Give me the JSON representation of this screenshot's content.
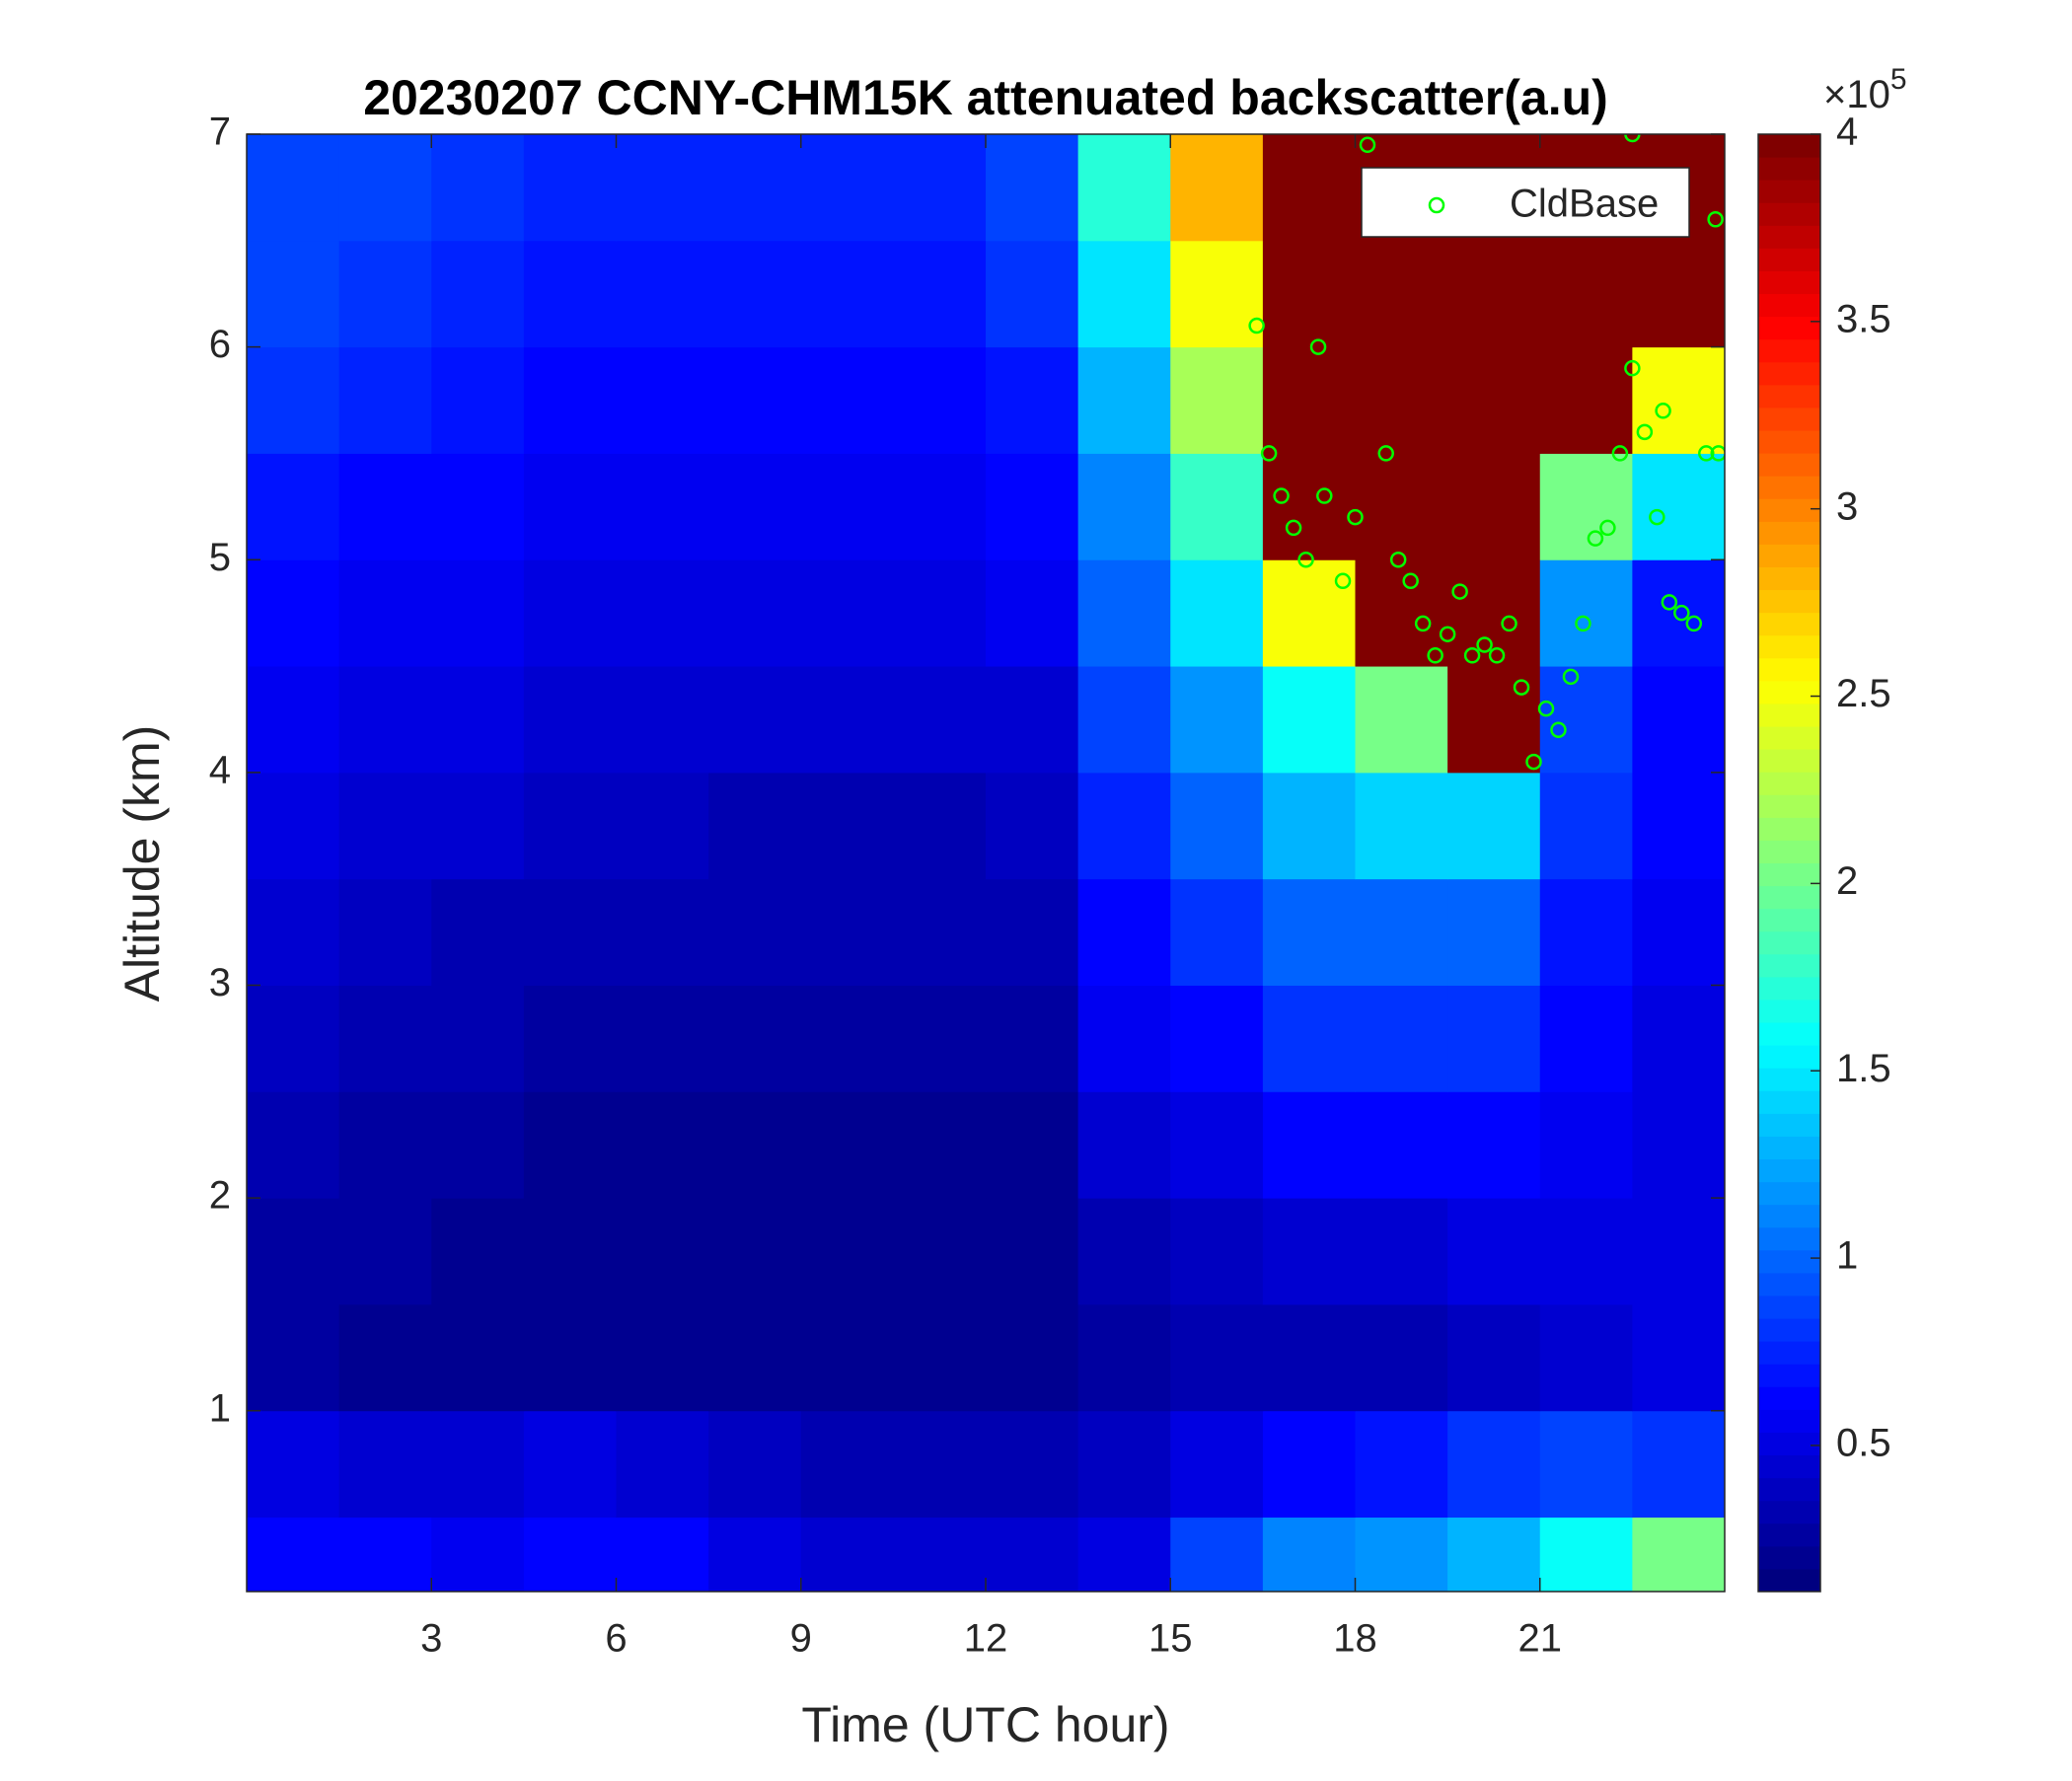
{
  "chart_data": {
    "type": "heatmap",
    "title": "20230207 CCNY-CHM15K attenuated backscatter(a.u)",
    "x_label": "Time (UTC hour)",
    "y_label": "Altitude (km)",
    "xlim": [
      0,
      24
    ],
    "xticks": [
      3,
      6,
      9,
      12,
      15,
      18,
      21
    ],
    "ylim": [
      0.15,
      7
    ],
    "yticks": [
      1,
      2,
      3,
      4,
      5,
      6,
      7
    ],
    "colormap": "jet",
    "clim": [
      0.11,
      4
    ],
    "colorbar_ticks": [
      0.5,
      1,
      1.5,
      2,
      2.5,
      3,
      3.5,
      4
    ],
    "colorbar_multiplier_base": "×10",
    "colorbar_multiplier_exponent": "5",
    "x": [
      0.75,
      2.25,
      3.75,
      5.25,
      6.75,
      8.25,
      9.75,
      11.25,
      12.75,
      14.25,
      15.75,
      17.25,
      18.75,
      20.25,
      21.75,
      23.25
    ],
    "y": [
      0.25,
      0.75,
      1.25,
      1.75,
      2.25,
      2.75,
      3.25,
      3.75,
      4.25,
      4.75,
      5.25,
      5.75,
      6.25,
      6.75
    ],
    "z": [
      [
        0.6,
        0.6,
        0.55,
        0.6,
        0.6,
        0.5,
        0.45,
        0.45,
        0.45,
        0.5,
        0.9,
        1.1,
        1.2,
        1.3,
        1.6,
        2.0
      ],
      [
        0.5,
        0.45,
        0.45,
        0.5,
        0.45,
        0.4,
        0.35,
        0.35,
        0.35,
        0.4,
        0.5,
        0.6,
        0.7,
        0.8,
        0.9,
        0.8
      ],
      [
        0.25,
        0.22,
        0.2,
        0.2,
        0.2,
        0.2,
        0.18,
        0.18,
        0.18,
        0.25,
        0.3,
        0.35,
        0.35,
        0.4,
        0.45,
        0.5
      ],
      [
        0.28,
        0.25,
        0.22,
        0.2,
        0.2,
        0.2,
        0.2,
        0.2,
        0.2,
        0.35,
        0.4,
        0.45,
        0.45,
        0.5,
        0.5,
        0.5
      ],
      [
        0.32,
        0.28,
        0.25,
        0.23,
        0.22,
        0.22,
        0.22,
        0.22,
        0.22,
        0.45,
        0.5,
        0.6,
        0.6,
        0.6,
        0.55,
        0.5
      ],
      [
        0.36,
        0.32,
        0.3,
        0.27,
        0.25,
        0.25,
        0.25,
        0.25,
        0.26,
        0.55,
        0.65,
        0.8,
        0.8,
        0.8,
        0.6,
        0.5
      ],
      [
        0.42,
        0.38,
        0.35,
        0.32,
        0.3,
        0.3,
        0.3,
        0.3,
        0.3,
        0.65,
        0.8,
        1.0,
        1.0,
        1.0,
        0.7,
        0.55
      ],
      [
        0.48,
        0.45,
        0.42,
        0.4,
        0.36,
        0.35,
        0.35,
        0.35,
        0.36,
        0.75,
        1.0,
        1.3,
        1.4,
        1.4,
        0.8,
        0.6
      ],
      [
        0.55,
        0.52,
        0.5,
        0.46,
        0.42,
        0.42,
        0.42,
        0.42,
        0.45,
        0.85,
        1.2,
        1.6,
        2.0,
        4.0,
        0.9,
        0.65
      ],
      [
        0.62,
        0.58,
        0.55,
        0.52,
        0.5,
        0.5,
        0.5,
        0.5,
        0.55,
        1.0,
        1.5,
        2.5,
        4.0,
        4.0,
        1.2,
        0.7
      ],
      [
        0.7,
        0.65,
        0.62,
        0.58,
        0.55,
        0.55,
        0.55,
        0.55,
        0.62,
        1.1,
        1.8,
        4.0,
        4.0,
        4.0,
        2.0,
        1.5
      ],
      [
        0.78,
        0.72,
        0.68,
        0.64,
        0.62,
        0.62,
        0.62,
        0.62,
        0.7,
        1.3,
        2.2,
        4.0,
        4.0,
        4.0,
        4.0,
        2.5
      ],
      [
        0.85,
        0.8,
        0.75,
        0.7,
        0.68,
        0.68,
        0.68,
        0.68,
        0.8,
        1.5,
        2.5,
        4.0,
        4.0,
        4.0,
        4.0,
        4.0
      ],
      [
        0.9,
        0.85,
        0.8,
        0.76,
        0.72,
        0.72,
        0.72,
        0.75,
        0.9,
        1.7,
        2.8,
        4.0,
        4.0,
        4.0,
        4.0,
        4.0
      ]
    ],
    "series": [
      {
        "name": "CldBase",
        "color": "#00ff00",
        "marker": "circle",
        "x": [
          16.4,
          16.6,
          16.8,
          17.0,
          17.2,
          17.4,
          17.5,
          17.8,
          18.0,
          18.2,
          18.5,
          18.7,
          18.9,
          19.1,
          19.3,
          19.5,
          19.7,
          19.9,
          20.1,
          20.3,
          20.5,
          20.7,
          20.9,
          21.1,
          21.3,
          21.5,
          21.7,
          21.9,
          22.1,
          22.3,
          22.5,
          22.5,
          22.7,
          22.9,
          23.0,
          23.1,
          23.3,
          23.5,
          23.7,
          23.85,
          23.9
        ],
        "values": [
          6.1,
          5.5,
          5.3,
          5.15,
          5.0,
          6.0,
          5.3,
          4.9,
          5.2,
          6.95,
          5.5,
          5.0,
          4.9,
          4.7,
          4.55,
          4.65,
          4.85,
          4.55,
          4.6,
          4.55,
          4.7,
          4.4,
          4.05,
          4.3,
          4.2,
          4.45,
          4.7,
          5.1,
          5.15,
          5.5,
          5.9,
          7.0,
          5.6,
          5.2,
          5.7,
          4.8,
          4.75,
          4.7,
          5.5,
          6.6,
          5.5
        ]
      }
    ],
    "legend": "northeast"
  }
}
